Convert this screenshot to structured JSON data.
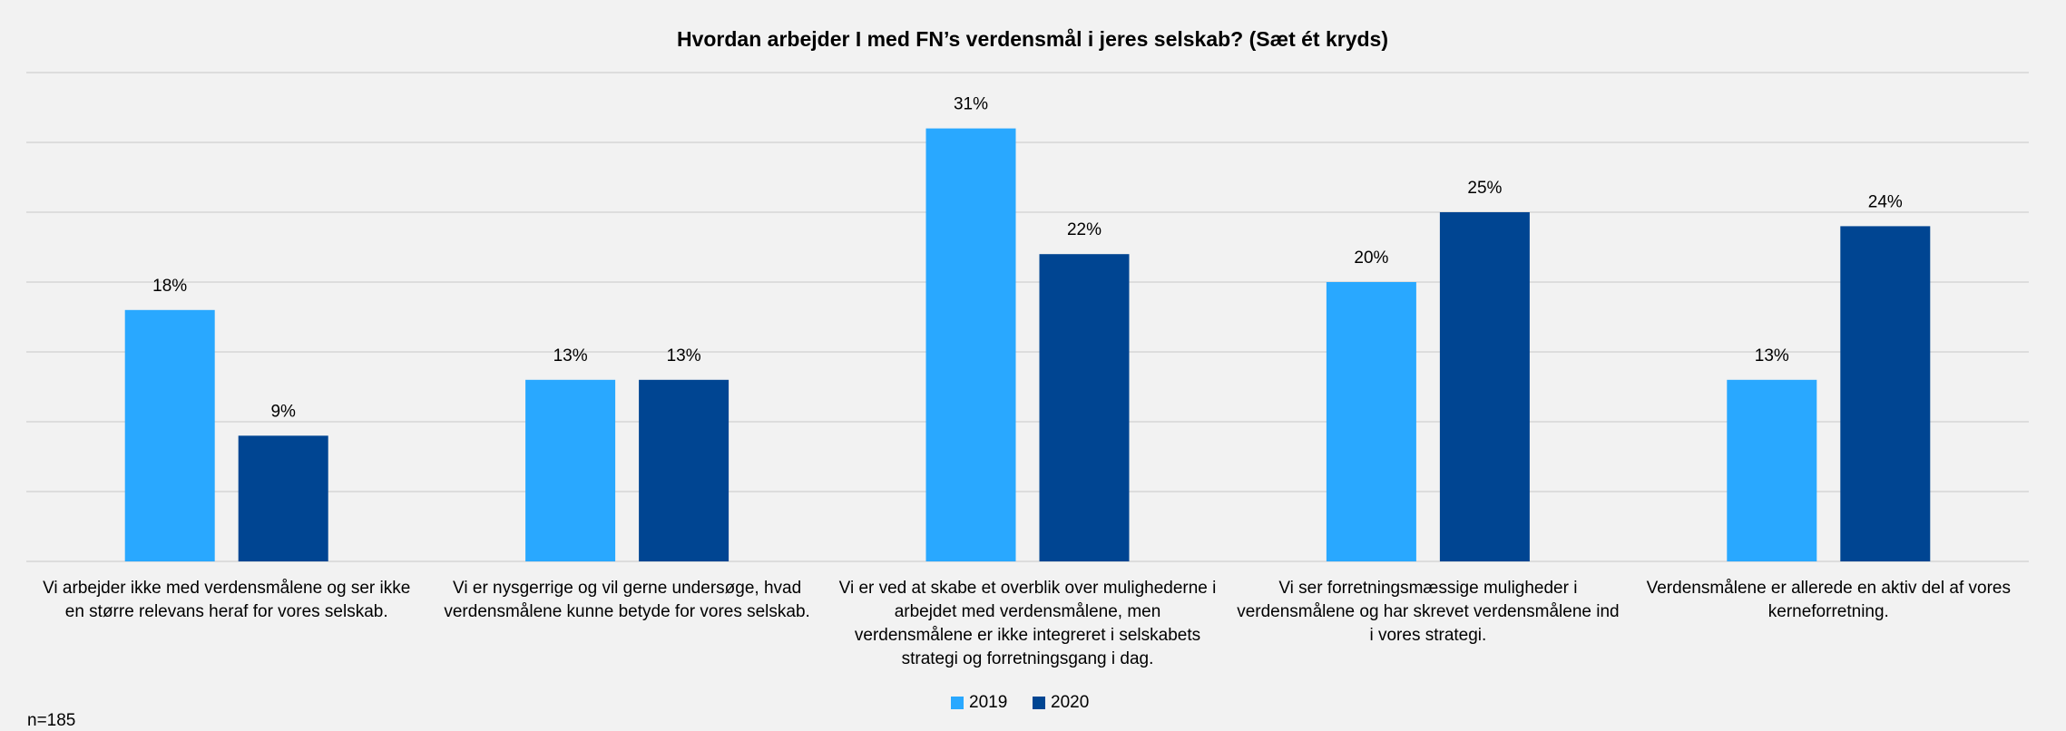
{
  "chart_data": {
    "type": "bar",
    "title": "Hvordan arbejder I med FN’s verdensmål i jeres selskab? (Sæt ét kryds)",
    "categories": [
      [
        "Vi arbejder ikke med verdensmålene og ser ikke",
        "en større relevans heraf for vores selskab."
      ],
      [
        "Vi er nysgerrige og vil gerne undersøge, hvad",
        "verdensmålene kunne betyde for vores selskab."
      ],
      [
        "Vi er ved at skabe et overblik over mulighederne i",
        "arbejdet med verdensmålene, men",
        "verdensmålene er ikke integreret i selskabets",
        "strategi og forretningsgang i dag."
      ],
      [
        "Vi ser forretningsmæssige muligheder i",
        "verdensmålene og har skrevet verdensmålene ind",
        "i vores strategi."
      ],
      [
        "Verdensmålene er allerede en aktiv del af vores",
        "kerneforretning."
      ]
    ],
    "series": [
      {
        "name": "2019",
        "color": "#29a8ff",
        "values": [
          18,
          13,
          31,
          20,
          13
        ],
        "value_labels": [
          "18%",
          "13%",
          "31%",
          "20%",
          "13%"
        ]
      },
      {
        "name": "2020",
        "color": "#004592",
        "values": [
          9,
          13,
          22,
          25,
          24
        ],
        "value_labels": [
          "9%",
          "13%",
          "22%",
          "25%",
          "24%"
        ]
      }
    ],
    "ylim": [
      0,
      35
    ],
    "yticks": [
      0,
      5,
      10,
      15,
      20,
      25,
      30,
      35
    ],
    "grid": true,
    "legend": "bottom",
    "note": "n=185"
  }
}
